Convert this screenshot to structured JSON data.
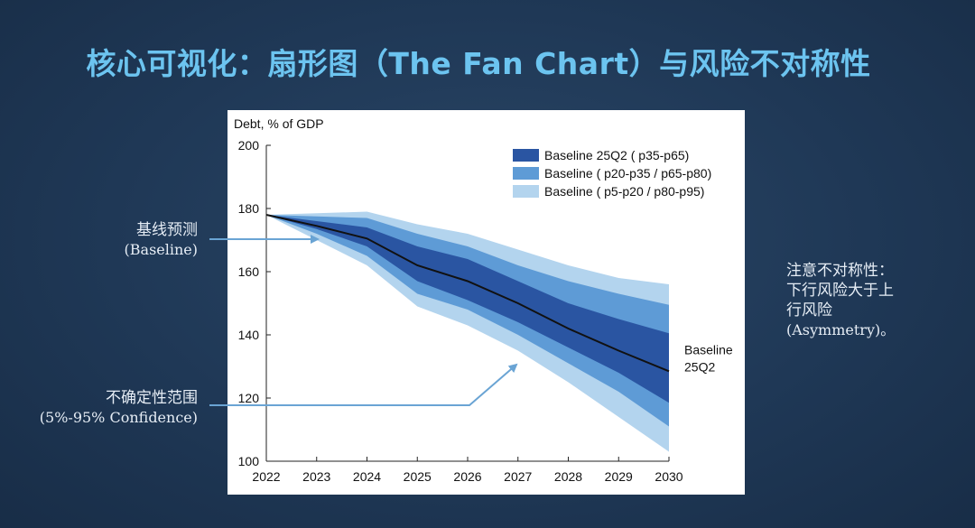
{
  "slide": {
    "title": "核心可视化：扇形图（The Fan Chart）与风险不对称性"
  },
  "annotations": {
    "baseline": {
      "zh": "基线预测",
      "en": "(Baseline)"
    },
    "confidence": {
      "zh": "不确定性范围",
      "en": "(5%-95% Confidence)"
    },
    "asymmetry": {
      "line1": "注意不对称性：",
      "line2": "下行风险大于上",
      "line3": "行风险",
      "line4": "(Asymmetry)。"
    }
  },
  "colors": {
    "title": "#6cc4f0",
    "band_inner": "#2a55a2",
    "band_mid": "#5e9bd6",
    "band_outer": "#b3d4ee",
    "baseline_line": "#111111",
    "arrow": "#6aa4d4"
  },
  "chart_data": {
    "type": "area",
    "title": "",
    "ylabel": "Debt, % of GDP",
    "xlabel": "",
    "x": [
      2022,
      2023,
      2024,
      2025,
      2026,
      2027,
      2028,
      2029,
      2030
    ],
    "ylim": [
      100,
      200
    ],
    "yticks": [
      100,
      120,
      140,
      160,
      180,
      200
    ],
    "grid": false,
    "legend_position": "top-right",
    "baseline": {
      "name": "Baseline 25Q2",
      "label_lines": [
        "Baseline",
        "25Q2"
      ],
      "values": [
        178,
        174.5,
        170.5,
        162,
        157,
        150,
        142,
        135,
        128.5
      ]
    },
    "series": [
      {
        "name": "Baseline ( p5-p20 / p80-p95)",
        "lower": [
          178,
          170,
          162,
          149,
          143,
          135,
          125,
          114,
          103
        ],
        "upper": [
          178,
          178.5,
          179,
          175,
          172,
          167,
          162,
          158,
          156
        ]
      },
      {
        "name": "Baseline ( p20-p35 / p65-p80)",
        "lower": [
          178,
          172,
          165,
          153,
          148,
          140,
          131,
          122,
          111
        ],
        "upper": [
          178,
          177.5,
          177,
          172,
          168,
          162,
          157,
          153,
          149.5
        ]
      },
      {
        "name": "Baseline 25Q2 ( p35-p65)",
        "lower": [
          178,
          173.5,
          168,
          157,
          151,
          144,
          136,
          128,
          118.5
        ],
        "upper": [
          178,
          176,
          174,
          168,
          164,
          157,
          150,
          145,
          140.5
        ]
      }
    ]
  }
}
